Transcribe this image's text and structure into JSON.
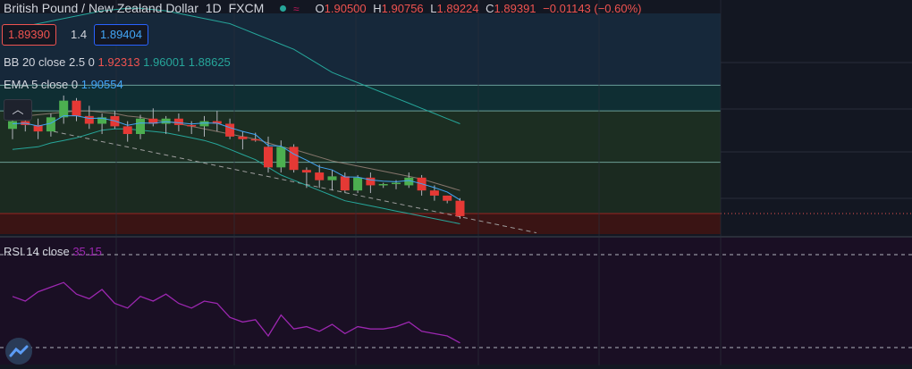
{
  "header": {
    "symbol_title": "British Pound / New Zealand Dollar",
    "interval": "1D",
    "exchange": "FXCM",
    "open_label": "O",
    "open": "1.90500",
    "high_label": "H",
    "high": "1.90756",
    "low_label": "L",
    "low": "1.89224",
    "close_label": "C",
    "close": "1.89391",
    "change": "−0.01143 (−0.60%)"
  },
  "trade": {
    "sell_price": "1.89390",
    "spread": "1.4",
    "buy_price": "1.89404"
  },
  "indicators": {
    "bb": {
      "label": "BB 20 close 2.5 0",
      "v1": "1.92313",
      "v2": "1.96001",
      "v3": "1.88625"
    },
    "ema": {
      "label": "EMA 5 close 0",
      "value": "1.90554"
    },
    "rsi": {
      "label": "RSI 14 close",
      "value": "35.15"
    }
  },
  "colors": {
    "background": "#131722",
    "up": "#4caf50",
    "down": "#e53935",
    "bb_band": "#26a69a",
    "ema": "#42a5f5",
    "rsi_line": "#9c27b0",
    "rsi_bg": "#1a0f24"
  },
  "icons": {
    "collapse": "chevron-up-icon",
    "logo": "tradingview-logo-icon"
  },
  "chart_data": {
    "type": "candlestick",
    "title": "British Pound / New Zealand Dollar",
    "interval": "1D",
    "candles": [
      {
        "o": 1.903,
        "h": 1.9085,
        "l": 1.899,
        "c": 1.906
      },
      {
        "o": 1.906,
        "h": 1.91,
        "l": 1.902,
        "c": 1.9045
      },
      {
        "o": 1.9045,
        "h": 1.907,
        "l": 1.899,
        "c": 1.902
      },
      {
        "o": 1.902,
        "h": 1.909,
        "l": 1.9,
        "c": 1.9075
      },
      {
        "o": 1.9075,
        "h": 1.916,
        "l": 1.905,
        "c": 1.914
      },
      {
        "o": 1.914,
        "h": 1.915,
        "l": 1.906,
        "c": 1.908
      },
      {
        "o": 1.908,
        "h": 1.912,
        "l": 1.903,
        "c": 1.905
      },
      {
        "o": 1.905,
        "h": 1.909,
        "l": 1.901,
        "c": 1.9075
      },
      {
        "o": 1.908,
        "h": 1.91,
        "l": 1.903,
        "c": 1.904
      },
      {
        "o": 1.904,
        "h": 1.906,
        "l": 1.898,
        "c": 1.901
      },
      {
        "o": 1.901,
        "h": 1.9085,
        "l": 1.899,
        "c": 1.907
      },
      {
        "o": 1.907,
        "h": 1.911,
        "l": 1.904,
        "c": 1.905
      },
      {
        "o": 1.905,
        "h": 1.908,
        "l": 1.901,
        "c": 1.907
      },
      {
        "o": 1.907,
        "h": 1.909,
        "l": 1.902,
        "c": 1.9045
      },
      {
        "o": 1.9045,
        "h": 1.906,
        "l": 1.901,
        "c": 1.904
      },
      {
        "o": 1.904,
        "h": 1.908,
        "l": 1.9,
        "c": 1.906
      },
      {
        "o": 1.906,
        "h": 1.91,
        "l": 1.902,
        "c": 1.905
      },
      {
        "o": 1.905,
        "h": 1.907,
        "l": 1.899,
        "c": 1.9
      },
      {
        "o": 1.9,
        "h": 1.902,
        "l": 1.895,
        "c": 1.899
      },
      {
        "o": 1.899,
        "h": 1.9015,
        "l": 1.898,
        "c": 1.8985
      },
      {
        "o": 1.896,
        "h": 1.9,
        "l": 1.886,
        "c": 1.888
      },
      {
        "o": 1.888,
        "h": 1.8985,
        "l": 1.886,
        "c": 1.896
      },
      {
        "o": 1.896,
        "h": 1.897,
        "l": 1.886,
        "c": 1.887
      },
      {
        "o": 1.887,
        "h": 1.888,
        "l": 1.88,
        "c": 1.886
      },
      {
        "o": 1.886,
        "h": 1.889,
        "l": 1.88,
        "c": 1.883
      },
      {
        "o": 1.883,
        "h": 1.887,
        "l": 1.879,
        "c": 1.8845
      },
      {
        "o": 1.8845,
        "h": 1.886,
        "l": 1.878,
        "c": 1.879
      },
      {
        "o": 1.879,
        "h": 1.885,
        "l": 1.878,
        "c": 1.884
      },
      {
        "o": 1.884,
        "h": 1.886,
        "l": 1.878,
        "c": 1.881
      },
      {
        "o": 1.881,
        "h": 1.882,
        "l": 1.88,
        "c": 1.8815
      },
      {
        "o": 1.8815,
        "h": 1.883,
        "l": 1.8795,
        "c": 1.882
      },
      {
        "o": 1.881,
        "h": 1.886,
        "l": 1.88,
        "c": 1.884
      },
      {
        "o": 1.884,
        "h": 1.885,
        "l": 1.877,
        "c": 1.879
      },
      {
        "o": 1.879,
        "h": 1.881,
        "l": 1.875,
        "c": 1.877
      },
      {
        "o": 1.877,
        "h": 1.877,
        "l": 1.874,
        "c": 1.875
      },
      {
        "o": 1.875,
        "h": 1.876,
        "l": 1.868,
        "c": 1.869
      }
    ],
    "bb_upper": [
      1.942,
      1.943,
      1.944,
      1.945,
      1.946,
      1.947,
      1.948,
      1.949,
      1.9495,
      1.95,
      1.95,
      1.9495,
      1.949,
      1.948,
      1.947,
      1.946,
      1.945,
      1.944,
      1.942,
      1.94,
      1.938,
      1.936,
      1.934,
      1.931,
      1.928,
      1.925,
      1.923,
      1.921,
      1.919,
      1.917,
      1.915,
      1.913,
      1.911,
      1.909,
      1.907,
      1.905
    ],
    "bb_middle": [
      1.9075,
      1.908,
      1.9085,
      1.909,
      1.9095,
      1.91,
      1.91,
      1.9095,
      1.909,
      1.908,
      1.9075,
      1.9065,
      1.906,
      1.905,
      1.904,
      1.903,
      1.902,
      1.901,
      1.9,
      1.899,
      1.8975,
      1.896,
      1.895,
      1.8935,
      1.892,
      1.8905,
      1.8895,
      1.8885,
      1.8875,
      1.8865,
      1.8855,
      1.8845,
      1.8835,
      1.882,
      1.8805,
      1.879
    ],
    "bb_lower": [
      1.895,
      1.8955,
      1.896,
      1.8975,
      1.8985,
      1.8995,
      1.901,
      1.9025,
      1.903,
      1.903,
      1.9025,
      1.902,
      1.9015,
      1.9005,
      1.8995,
      1.8985,
      1.897,
      1.895,
      1.893,
      1.891,
      1.888,
      1.885,
      1.883,
      1.881,
      1.879,
      1.877,
      1.875,
      1.874,
      1.873,
      1.872,
      1.871,
      1.87,
      1.869,
      1.868,
      1.867,
      1.866
    ],
    "ema": [
      1.905,
      1.9052,
      1.9041,
      1.9052,
      1.9081,
      1.9081,
      1.9071,
      1.9072,
      1.9061,
      1.9044,
      1.9053,
      1.9052,
      1.9058,
      1.9054,
      1.9049,
      1.9053,
      1.9052,
      1.9035,
      1.902,
      1.9008,
      1.8965,
      1.8963,
      1.8932,
      1.8908,
      1.8882,
      1.887,
      1.8843,
      1.8842,
      1.8831,
      1.8826,
      1.8824,
      1.8829,
      1.8816,
      1.8801,
      1.8784,
      1.8753
    ],
    "rsi": [
      52,
      50,
      54,
      56,
      58,
      53,
      51,
      55,
      49,
      47,
      52,
      50,
      53,
      49,
      47,
      50,
      49,
      43,
      41,
      42,
      35,
      44,
      38,
      39,
      37,
      40,
      36,
      39,
      38,
      38,
      39,
      41,
      37,
      36,
      35,
      32
    ],
    "rsi_range": [
      25,
      75
    ],
    "levels": [
      1.92,
      1.91,
      1.89,
      1.87
    ]
  }
}
